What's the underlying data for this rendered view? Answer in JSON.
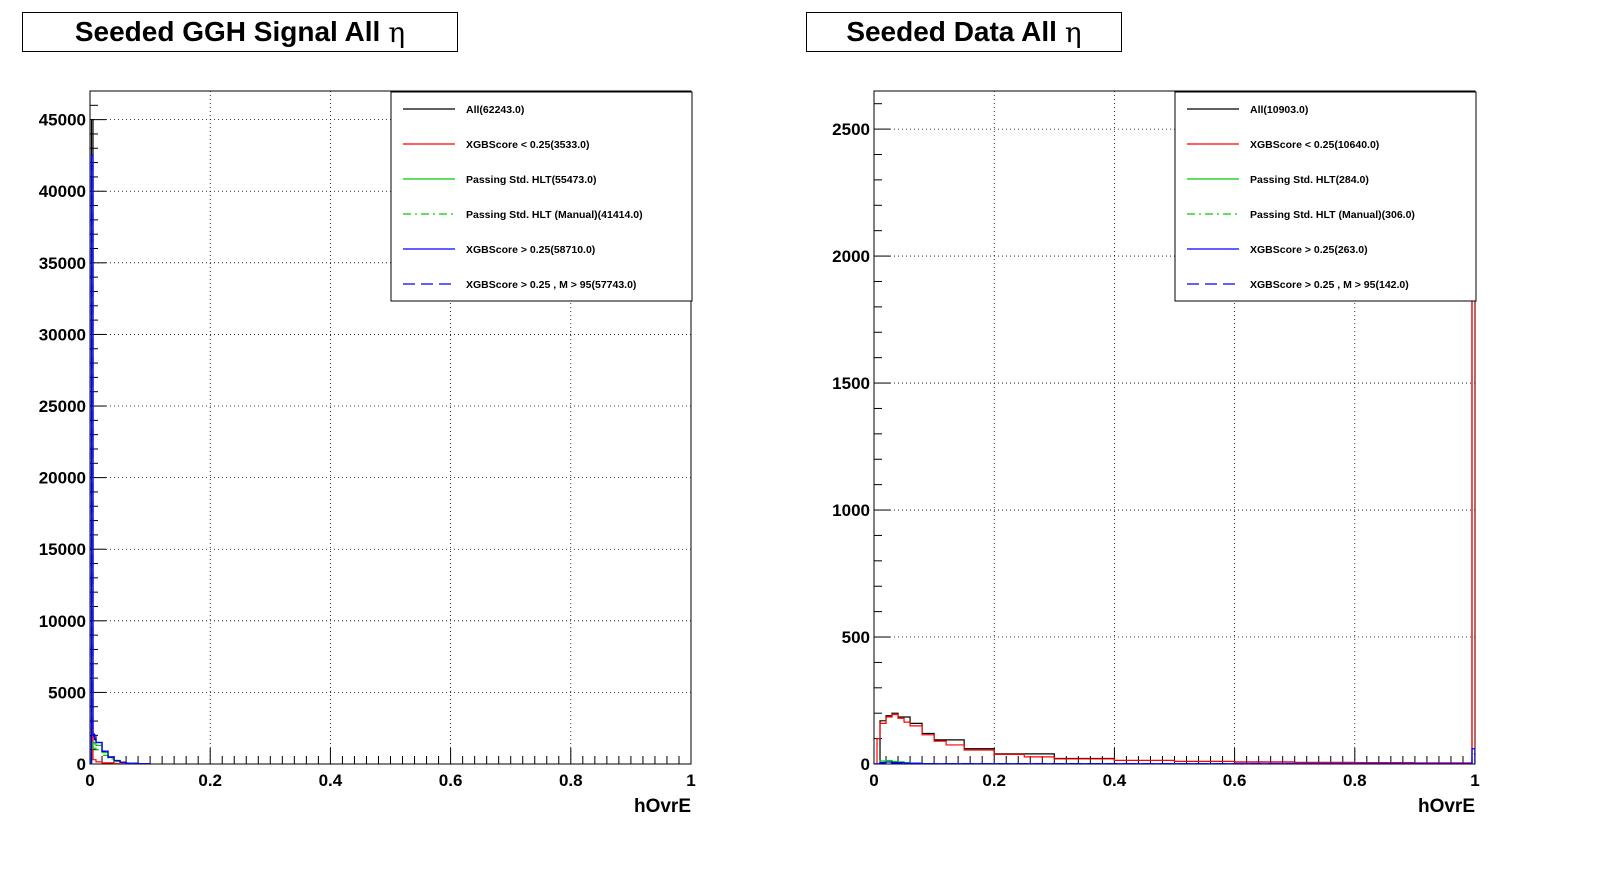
{
  "chart_data": [
    {
      "type": "line",
      "title": "Seeded GGH Signal All",
      "title_symbol": "η",
      "xlabel": "hOvrE",
      "ylabel": "",
      "xlim": [
        0,
        1
      ],
      "ylim": [
        0,
        47000
      ],
      "x_ticks": [
        0,
        0.2,
        0.4,
        0.6,
        0.8,
        1
      ],
      "x_tick_labels": [
        "0",
        "0.2",
        "0.4",
        "0.6",
        "0.8",
        "1"
      ],
      "y_ticks": [
        0,
        5000,
        10000,
        15000,
        20000,
        25000,
        30000,
        35000,
        40000,
        45000
      ],
      "y_tick_labels": [
        "0",
        "5000",
        "10000",
        "15000",
        "20000",
        "25000",
        "30000",
        "35000",
        "40000",
        "45000"
      ],
      "grid": true,
      "legend_position": "top-right",
      "series": [
        {
          "name": "All(62243.0)",
          "color": "#000000",
          "dash": "solid",
          "x": [
            0,
            0.0025,
            0.005,
            0.0075,
            0.01,
            0.02,
            0.03,
            0.04,
            0.05,
            0.06,
            0.08,
            0.1
          ],
          "values": [
            0,
            45000,
            1900,
            1700,
            1500,
            900,
            500,
            250,
            120,
            60,
            20,
            0
          ]
        },
        {
          "name": "XGBScore < 0.25(3533.0)",
          "color": "#ff0000",
          "dash": "solid",
          "x": [
            0,
            0.0025,
            0.005,
            0.01,
            0.02,
            0.04,
            0.1
          ],
          "values": [
            0,
            2500,
            300,
            150,
            80,
            30,
            0
          ]
        },
        {
          "name": "Passing Std. HLT(55473.0)",
          "color": "#00cc00",
          "dash": "solid",
          "x": [
            0,
            0.0025,
            0.005,
            0.0075,
            0.01,
            0.02,
            0.03,
            0.04,
            0.05,
            0.06,
            0.08
          ],
          "values": [
            0,
            1200,
            1500,
            1400,
            1300,
            800,
            450,
            220,
            100,
            50,
            0
          ]
        },
        {
          "name": "Passing Std. HLT (Manual)(41414.0)",
          "color": "#00cc00",
          "dash": "dashdot",
          "x": [
            0,
            0.0025,
            0.005,
            0.01,
            0.02,
            0.03,
            0.04,
            0.05,
            0.06
          ],
          "values": [
            0,
            900,
            1100,
            1000,
            600,
            350,
            170,
            80,
            0
          ]
        },
        {
          "name": "XGBScore > 0.25(58710.0)",
          "color": "#0000ff",
          "dash": "solid",
          "x": [
            0,
            0.0025,
            0.005,
            0.0075,
            0.01,
            0.02,
            0.03,
            0.04,
            0.05,
            0.06,
            0.08,
            0.1
          ],
          "values": [
            0,
            42500,
            2100,
            1800,
            1500,
            900,
            480,
            240,
            110,
            50,
            15,
            0
          ]
        },
        {
          "name": "XGBScore > 0.25 , M > 95(57743.0)",
          "color": "#0000ff",
          "dash": "dashed",
          "x": [
            0,
            0.0025,
            0.005,
            0.01,
            0.02,
            0.03,
            0.04,
            0.05,
            0.06,
            0.08
          ],
          "values": [
            0,
            41800,
            2000,
            1450,
            880,
            470,
            230,
            100,
            45,
            0
          ]
        }
      ]
    },
    {
      "type": "line",
      "title": "Seeded Data All",
      "title_symbol": "η",
      "xlabel": "hOvrE",
      "ylabel": "",
      "xlim": [
        0,
        1
      ],
      "ylim": [
        0,
        2650
      ],
      "x_ticks": [
        0,
        0.2,
        0.4,
        0.6,
        0.8,
        1
      ],
      "x_tick_labels": [
        "0",
        "0.2",
        "0.4",
        "0.6",
        "0.8",
        "1"
      ],
      "y_ticks": [
        0,
        500,
        1000,
        1500,
        2000,
        2500
      ],
      "y_tick_labels": [
        "0",
        "500",
        "1000",
        "1500",
        "2000",
        "2500"
      ],
      "grid": true,
      "legend_position": "top-right",
      "series": [
        {
          "name": "All(10903.0)",
          "color": "#000000",
          "dash": "solid",
          "x": [
            0,
            0.01,
            0.02,
            0.03,
            0.04,
            0.06,
            0.08,
            0.1,
            0.15,
            0.2,
            0.3,
            0.4,
            0.5,
            0.6,
            0.7,
            0.8,
            0.9,
            0.995,
            1.0
          ],
          "values": [
            0,
            170,
            190,
            200,
            185,
            160,
            120,
            95,
            60,
            40,
            22,
            14,
            10,
            8,
            6,
            5,
            4,
            2000,
            0
          ]
        },
        {
          "name": "XGBScore < 0.25(10640.0)",
          "color": "#ff0000",
          "dash": "solid",
          "x": [
            0,
            0.005,
            0.01,
            0.02,
            0.03,
            0.04,
            0.05,
            0.06,
            0.08,
            0.1,
            0.12,
            0.15,
            0.2,
            0.25,
            0.3,
            0.4,
            0.5,
            0.6,
            0.7,
            0.8,
            0.9,
            0.995,
            1.0
          ],
          "values": [
            0,
            100,
            160,
            185,
            195,
            180,
            165,
            150,
            115,
            90,
            75,
            55,
            38,
            28,
            20,
            14,
            10,
            8,
            6,
            5,
            4,
            1850,
            0
          ]
        },
        {
          "name": "Passing Std. HLT(284.0)",
          "color": "#00cc00",
          "dash": "solid",
          "x": [
            0,
            0.01,
            0.02,
            0.03,
            0.04,
            0.05,
            0.06,
            0.08,
            0.1
          ],
          "values": [
            0,
            12,
            14,
            10,
            8,
            5,
            3,
            1,
            0
          ]
        },
        {
          "name": "Passing Std. HLT (Manual)(306.0)",
          "color": "#00cc00",
          "dash": "dashdot",
          "x": [
            0,
            0.01,
            0.02,
            0.03,
            0.04,
            0.05,
            0.06,
            0.08,
            0.1
          ],
          "values": [
            0,
            11,
            13,
            9,
            7,
            5,
            3,
            1,
            0
          ]
        },
        {
          "name": "XGBScore > 0.25(263.0)",
          "color": "#0000ff",
          "dash": "solid",
          "x": [
            0,
            0.01,
            0.02,
            0.03,
            0.05,
            0.08,
            0.995,
            1.0
          ],
          "values": [
            0,
            6,
            8,
            6,
            3,
            1,
            60,
            0
          ]
        },
        {
          "name": "XGBScore > 0.25 , M > 95(142.0)",
          "color": "#0000ff",
          "dash": "dashed",
          "x": [
            0,
            0.01,
            0.02,
            0.03,
            0.05,
            0.08,
            0.995,
            1.0
          ],
          "values": [
            0,
            4,
            5,
            4,
            2,
            1,
            40,
            0
          ]
        }
      ]
    }
  ]
}
